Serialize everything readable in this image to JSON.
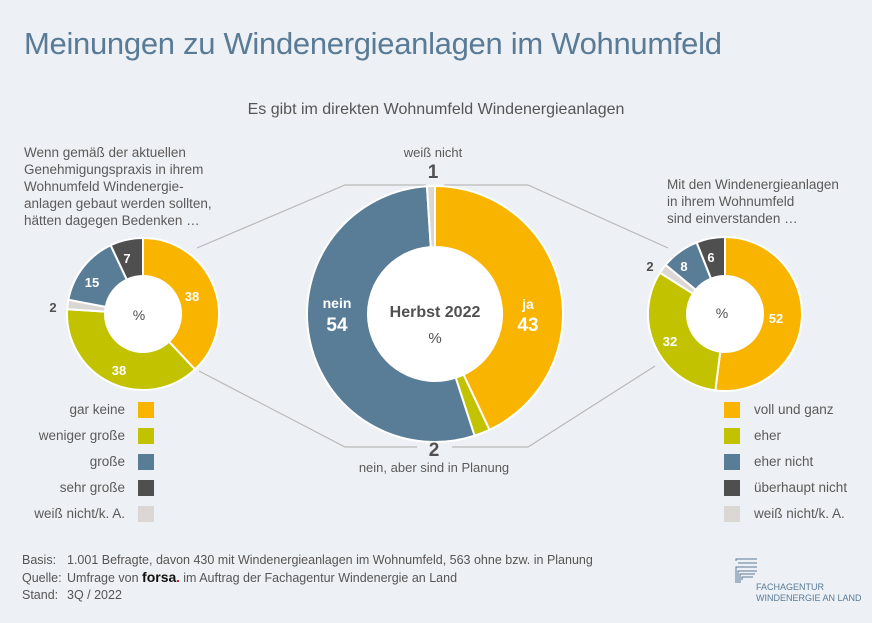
{
  "title": "Meinungen zu Windenergieanlagen im Wohnumfeld",
  "subtitle": "Es gibt im direkten Wohnumfeld Windenergieanlagen",
  "colors": {
    "yellow": "#f9b400",
    "green": "#c2c200",
    "blue": "#5a7d97",
    "dark": "#4f4f4f",
    "grey": "#dbd7d5",
    "background": "#edf0f5",
    "title": "#5a7b96"
  },
  "chart_data": [
    {
      "type": "pie",
      "name": "center",
      "title": "Herbst 2022",
      "unit": "%",
      "categories": [
        "ja",
        "nein, aber sind in Planung",
        "nein",
        "weiß nicht"
      ],
      "values": [
        43,
        2,
        54,
        1
      ],
      "label_values": [
        "43",
        "2",
        "54",
        "1"
      ],
      "labels": {
        "ja": "ja",
        "nein": "nein",
        "planung": "nein, aber sind in Planung",
        "weiss": "weiß nicht"
      },
      "colors": [
        "#f9b400",
        "#c2c200",
        "#5a7d97",
        "#dbd7d5"
      ]
    },
    {
      "type": "pie",
      "name": "left",
      "question": [
        "Wenn gemäß der aktuellen",
        "Genehmigungspraxis in ihrem",
        "Wohnumfeld Windenergie-",
        "anlagen gebaut werden sollten,",
        "hätten dagegen Bedenken …"
      ],
      "unit": "%",
      "categories": [
        "gar keine",
        "weniger große",
        "weiß nicht/k. A.",
        "große",
        "sehr große"
      ],
      "values": [
        38,
        38,
        2,
        15,
        7
      ],
      "label_values": [
        "38",
        "38",
        "2",
        "15",
        "7"
      ],
      "colors": [
        "#f9b400",
        "#c2c200",
        "#dbd7d5",
        "#5a7d97",
        "#4f4f4f"
      ],
      "legend": [
        {
          "label": "gar keine",
          "color": "#f9b400"
        },
        {
          "label": "weniger große",
          "color": "#c2c200"
        },
        {
          "label": "große",
          "color": "#5a7d97"
        },
        {
          "label": "sehr große",
          "color": "#4f4f4f"
        },
        {
          "label": "weiß nicht/k. A.",
          "color": "#dbd7d5"
        }
      ]
    },
    {
      "type": "pie",
      "name": "right",
      "question": [
        "Mit den Windenergieanlagen",
        "in ihrem Wohnumfeld",
        "sind einverstanden …"
      ],
      "unit": "%",
      "categories": [
        "voll und ganz",
        "eher",
        "weiß nicht/k. A.",
        "eher nicht",
        "überhaupt nicht"
      ],
      "values": [
        52,
        32,
        2,
        8,
        6
      ],
      "label_values": [
        "52",
        "32",
        "2",
        "8",
        "6"
      ],
      "colors": [
        "#f9b400",
        "#c2c200",
        "#dbd7d5",
        "#5a7d97",
        "#4f4f4f"
      ],
      "legend": [
        {
          "label": "voll und ganz",
          "color": "#f9b400"
        },
        {
          "label": "eher",
          "color": "#c2c200"
        },
        {
          "label": "eher nicht",
          "color": "#5a7d97"
        },
        {
          "label": "überhaupt nicht",
          "color": "#4f4f4f"
        },
        {
          "label": "weiß nicht/k. A.",
          "color": "#dbd7d5"
        }
      ]
    }
  ],
  "footer": {
    "basis_label": "Basis:",
    "basis_text": "1.001 Befragte, davon 430 mit Windenergieanlagen im Wohnumfeld, 563 ohne bzw. in Planung",
    "quelle_label": "Quelle:",
    "quelle_pre": "Umfrage von",
    "quelle_brand": "forsa",
    "quelle_brand_dot": ".",
    "quelle_post": "im Auftrag der Fachagentur Windenergie an Land",
    "stand_label": "Stand:",
    "stand_text": "3Q / 2022"
  },
  "logo": {
    "line1": "FACHAGENTUR",
    "line2": "WINDENERGIE AN LAND",
    "icon": "fachagentur-logo-icon"
  }
}
